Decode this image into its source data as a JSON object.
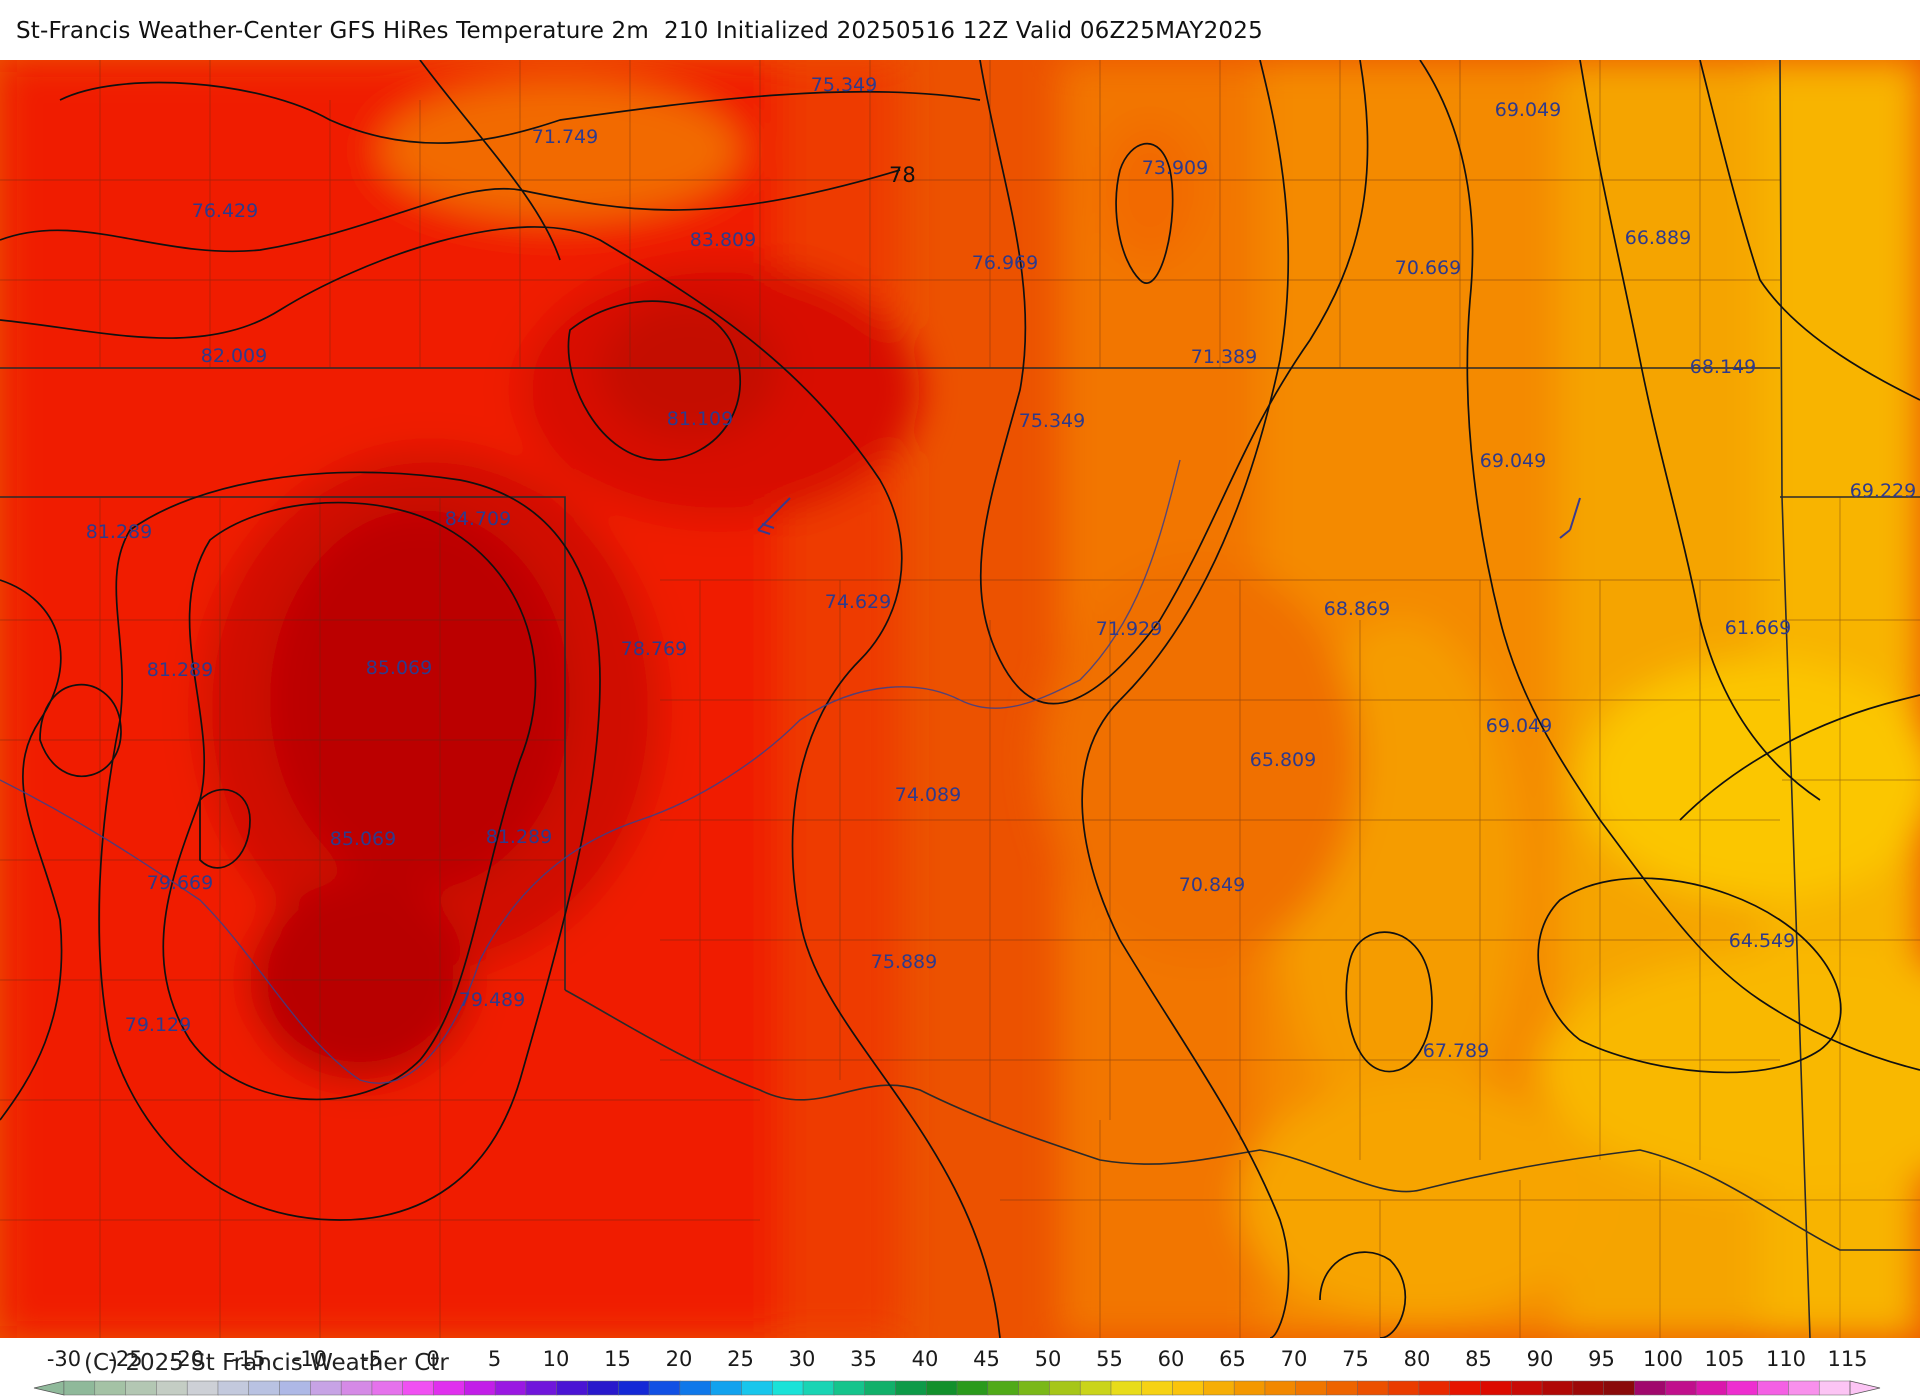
{
  "title": "St-Francis Weather-Center GFS HiRes Temperature 2m  210 Initialized 20250516 12Z Valid 06Z25MAY2025",
  "copyright": "(C) 2025 St Francis Weather Ctr",
  "map": {
    "contour_labels": [
      "78"
    ],
    "temperature_labels": [
      "75.349",
      "71.749",
      "76.429",
      "83.809",
      "73.909",
      "69.049",
      "66.889",
      "76.969",
      "70.669",
      "82.009",
      "71.389",
      "68.149",
      "81.109",
      "75.349",
      "69.049",
      "69.229",
      "84.709",
      "81.289",
      "74.629",
      "71.929",
      "68.869",
      "61.669",
      "78.769",
      "85.069",
      "81.289",
      "69.049",
      "65.809",
      "74.089",
      "85.069",
      "81.289",
      "79.669",
      "70.849",
      "64.549",
      "75.889",
      "79.489",
      "79.129",
      "67.789"
    ]
  },
  "colorbar": {
    "ticks": [
      "-30",
      "-25",
      "-20",
      "-15",
      "-10",
      "-5",
      "0",
      "5",
      "10",
      "15",
      "20",
      "25",
      "30",
      "35",
      "40",
      "45",
      "50",
      "55",
      "60",
      "65",
      "70",
      "75",
      "80",
      "85",
      "90",
      "95",
      "100",
      "105",
      "110",
      "115"
    ],
    "colors": [
      "#8fb99a",
      "#a4c2a5",
      "#b3c7b3",
      "#c4cdc4",
      "#cdd0d6",
      "#c3c9dd",
      "#b9c2e2",
      "#aeb8e6",
      "#c7a3e5",
      "#d58ae6",
      "#e572ec",
      "#f050f2",
      "#e030ee",
      "#c21ee8",
      "#9a18e2",
      "#7016db",
      "#4a14d4",
      "#2818cc",
      "#1428d6",
      "#1150e4",
      "#0f78ea",
      "#12a2ee",
      "#18c6ec",
      "#1ae2d8",
      "#19d4b4",
      "#15c48c",
      "#11b06a",
      "#0d9a48",
      "#12902c",
      "#2a9a1c",
      "#50aa18",
      "#7ab818",
      "#a6c618",
      "#cad41a",
      "#e8dc1a",
      "#f6d214",
      "#fac40c",
      "#f6ae06",
      "#f49800",
      "#f28800",
      "#f07600",
      "#ee6400",
      "#ec5000",
      "#ea3c00",
      "#e82800",
      "#e61400",
      "#dc0a00",
      "#c80a06",
      "#b00806",
      "#9c0808",
      "#8a0a0a",
      "#a0086c",
      "#c0108c",
      "#da18ac",
      "#ee2ed0",
      "#f460e4",
      "#f890ec",
      "#fcc4f4"
    ]
  }
}
